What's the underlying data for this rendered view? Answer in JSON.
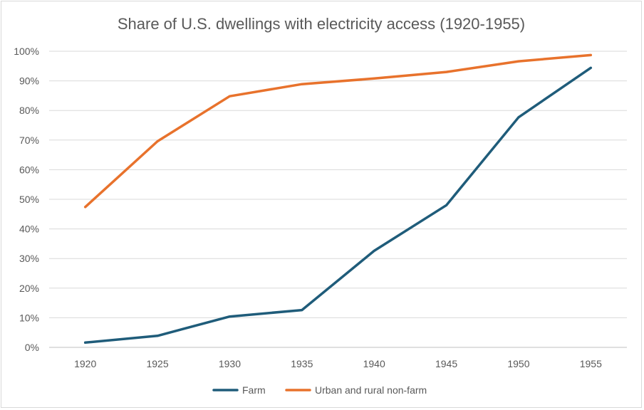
{
  "chart_data": {
    "type": "line",
    "title": "Share of U.S. dwellings with electricity access (1920-1955)",
    "xlabel": "",
    "ylabel": "",
    "categories": [
      "1920",
      "1925",
      "1930",
      "1935",
      "1940",
      "1945",
      "1950",
      "1955"
    ],
    "y_tick_labels": [
      "0%",
      "10%",
      "20%",
      "30%",
      "40%",
      "50%",
      "60%",
      "70%",
      "80%",
      "90%",
      "100%"
    ],
    "ylim": [
      0,
      100
    ],
    "y_unit": "%",
    "grid": true,
    "legend_position": "bottom",
    "series": [
      {
        "name": "Farm",
        "color": "#1f5c7a",
        "values": [
          1.6,
          3.9,
          10.4,
          12.6,
          32.6,
          48.0,
          77.7,
          94.4
        ]
      },
      {
        "name": "Urban and rural non-farm",
        "color": "#e8722c",
        "values": [
          47.4,
          69.6,
          84.8,
          88.9,
          90.8,
          93.0,
          96.6,
          98.7
        ]
      }
    ]
  }
}
